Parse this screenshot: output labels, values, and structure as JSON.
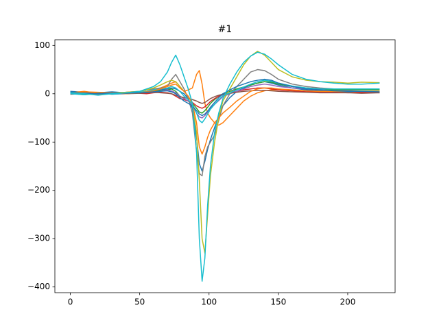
{
  "chart_data": {
    "type": "line",
    "title": "#1",
    "x": [
      0,
      10,
      20,
      30,
      40,
      50,
      55,
      60,
      65,
      70,
      73,
      76,
      79,
      82,
      85,
      88,
      91,
      93,
      95,
      97,
      99,
      101,
      104,
      107,
      110,
      115,
      120,
      125,
      130,
      135,
      140,
      145,
      150,
      160,
      170,
      180,
      190,
      200,
      210,
      223
    ],
    "xlim": [
      -11.15,
      234.15
    ],
    "xticks": [
      0,
      50,
      100,
      150,
      200
    ],
    "ylim": [
      -411.8,
      111.8
    ],
    "yticks": [
      {
        "value": -400,
        "label": "−400"
      },
      {
        "value": -300,
        "label": "−300"
      },
      {
        "value": -200,
        "label": "−200"
      },
      {
        "value": -100,
        "label": "−100"
      },
      0,
      100
    ],
    "series": [
      {
        "color": "#1f77b4",
        "values": [
          5,
          3,
          2,
          4,
          2,
          3,
          5,
          6,
          8,
          10,
          12,
          10,
          5,
          0,
          -10,
          -30,
          -90,
          -145,
          -160,
          -140,
          -115,
          -95,
          -70,
          -45,
          -25,
          -8,
          5,
          12,
          18,
          22,
          25,
          22,
          18,
          12,
          8,
          6,
          5,
          4,
          5,
          4
        ]
      },
      {
        "color": "#ff7f0e",
        "values": [
          0,
          4,
          3,
          2,
          1,
          3,
          5,
          8,
          12,
          18,
          22,
          25,
          15,
          5,
          8,
          12,
          40,
          48,
          20,
          -20,
          -40,
          -50,
          -60,
          -65,
          -60,
          -45,
          -30,
          -15,
          -5,
          2,
          6,
          8,
          8,
          6,
          5,
          5,
          4,
          5,
          4,
          5
        ]
      },
      {
        "color": "#2ca02c",
        "values": [
          1,
          -2,
          0,
          2,
          1,
          2,
          3,
          5,
          6,
          8,
          10,
          5,
          -5,
          -10,
          -15,
          -20,
          -30,
          -38,
          -40,
          -35,
          -28,
          -20,
          -12,
          -5,
          0,
          5,
          10,
          14,
          18,
          22,
          25,
          24,
          20,
          15,
          12,
          10,
          8,
          8,
          8,
          8
        ]
      },
      {
        "color": "#d62728",
        "values": [
          0,
          1,
          -1,
          0,
          2,
          1,
          0,
          2,
          3,
          2,
          0,
          -5,
          -10,
          -12,
          -15,
          -18,
          -25,
          -28,
          -30,
          -27,
          -22,
          -16,
          -10,
          -5,
          -2,
          2,
          5,
          8,
          10,
          12,
          12,
          10,
          8,
          6,
          4,
          3,
          3,
          2,
          3,
          2
        ]
      },
      {
        "color": "#9467bd",
        "values": [
          2,
          0,
          1,
          -1,
          0,
          2,
          3,
          4,
          5,
          8,
          6,
          2,
          -5,
          -10,
          -15,
          -25,
          -40,
          -48,
          -50,
          -45,
          -38,
          -30,
          -22,
          -14,
          -6,
          0,
          5,
          10,
          15,
          18,
          20,
          18,
          15,
          12,
          10,
          8,
          6,
          6,
          5,
          5
        ]
      },
      {
        "color": "#8c564b",
        "values": [
          -1,
          0,
          2,
          1,
          0,
          1,
          2,
          3,
          2,
          1,
          0,
          -3,
          -6,
          -8,
          -10,
          -12,
          -15,
          -18,
          -20,
          -18,
          -14,
          -10,
          -6,
          -3,
          -1,
          1,
          3,
          5,
          6,
          7,
          7,
          6,
          5,
          4,
          3,
          2,
          2,
          2,
          1,
          2
        ]
      },
      {
        "color": "#7f7f7f",
        "values": [
          0,
          2,
          -2,
          1,
          3,
          5,
          8,
          10,
          12,
          15,
          30,
          40,
          25,
          10,
          -10,
          -40,
          -120,
          -165,
          -170,
          -130,
          -110,
          -100,
          -85,
          -55,
          -25,
          0,
          15,
          30,
          45,
          50,
          48,
          40,
          30,
          20,
          15,
          12,
          10,
          10,
          10,
          10
        ]
      },
      {
        "color": "#bcbd22",
        "values": [
          3,
          1,
          0,
          2,
          3,
          5,
          8,
          12,
          18,
          25,
          28,
          25,
          15,
          5,
          -5,
          -20,
          -80,
          -180,
          -300,
          -330,
          -250,
          -170,
          -100,
          -50,
          -15,
          10,
          35,
          60,
          78,
          88,
          80,
          65,
          50,
          35,
          28,
          25,
          24,
          22,
          24,
          23
        ]
      },
      {
        "color": "#17becf",
        "values": [
          0,
          -2,
          2,
          -1,
          1,
          3,
          5,
          8,
          10,
          12,
          15,
          12,
          5,
          -5,
          -12,
          -22,
          -40,
          -55,
          -60,
          -52,
          -42,
          -32,
          -22,
          -12,
          -4,
          2,
          8,
          14,
          20,
          25,
          28,
          26,
          22,
          16,
          12,
          10,
          10,
          10,
          10,
          10
        ]
      },
      {
        "color": "#ff7f0e",
        "values": [
          2,
          5,
          1,
          3,
          0,
          2,
          4,
          6,
          10,
          15,
          18,
          20,
          12,
          5,
          -5,
          -20,
          -60,
          -110,
          -125,
          -110,
          -90,
          -75,
          -60,
          -50,
          -40,
          -28,
          -15,
          -5,
          5,
          10,
          12,
          12,
          10,
          8,
          6,
          5,
          5,
          5,
          5,
          5
        ]
      },
      {
        "color": "#1f77b4",
        "values": [
          3,
          1,
          0,
          2,
          1,
          2,
          3,
          4,
          5,
          6,
          4,
          0,
          -8,
          -15,
          -20,
          -25,
          -35,
          -42,
          -45,
          -42,
          -36,
          -28,
          -18,
          -8,
          0,
          8,
          15,
          20,
          25,
          28,
          30,
          28,
          22,
          15,
          10,
          8,
          6,
          5,
          5,
          4
        ]
      },
      {
        "color": "#17becf",
        "values": [
          2,
          0,
          -3,
          0,
          2,
          5,
          10,
          15,
          25,
          45,
          65,
          80,
          60,
          35,
          10,
          -20,
          -120,
          -300,
          -388,
          -340,
          -230,
          -150,
          -80,
          -40,
          -10,
          20,
          45,
          65,
          78,
          86,
          82,
          72,
          60,
          40,
          30,
          25,
          22,
          20,
          20,
          22
        ]
      }
    ]
  }
}
